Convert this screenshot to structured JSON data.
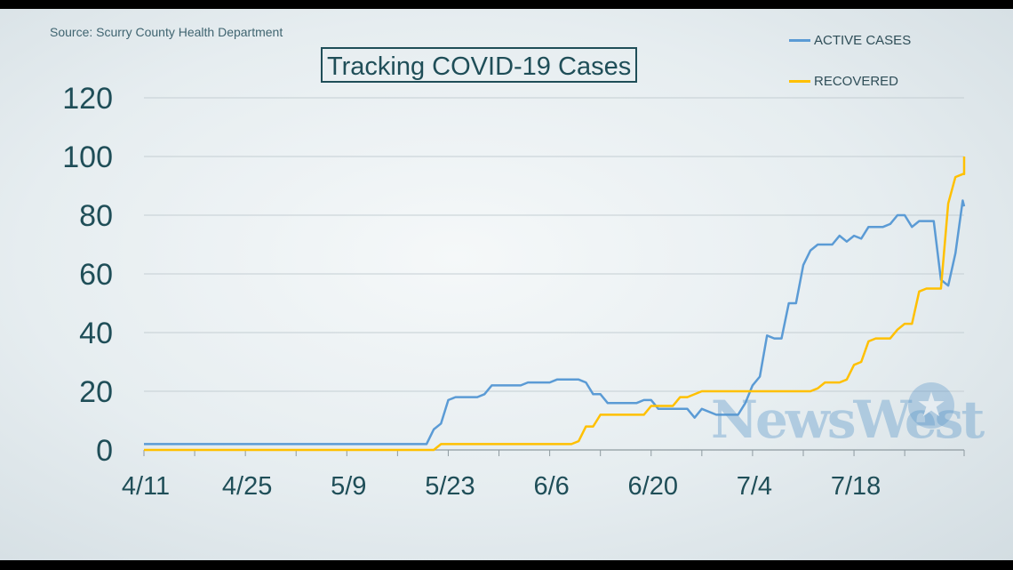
{
  "header": {
    "source": "Source: Scurry County Health Department",
    "title": "Tracking COVID-19 Cases"
  },
  "watermark": {
    "text": "NewsWest",
    "icon": "star-icon"
  },
  "colors": {
    "active": "#5b9bd5",
    "recovered": "#ffc000",
    "text": "#1f4e58",
    "grid": "#c4ced3"
  },
  "chart_data": {
    "type": "line",
    "title": "Tracking COVID-19 Cases",
    "xlabel": "",
    "ylabel": "",
    "ylim": [
      0,
      120
    ],
    "yticks": [
      0,
      20,
      40,
      60,
      80,
      100,
      120
    ],
    "xlim": [
      "2020-04-11",
      "2020-08-01"
    ],
    "xticks": [
      {
        "date": "2020-04-11",
        "label": "4/11"
      },
      {
        "date": "2020-04-25",
        "label": "4/25"
      },
      {
        "date": "2020-05-09",
        "label": "5/9"
      },
      {
        "date": "2020-05-23",
        "label": "5/23"
      },
      {
        "date": "2020-06-06",
        "label": "6/6"
      },
      {
        "date": "2020-06-20",
        "label": "6/20"
      },
      {
        "date": "2020-07-04",
        "label": "7/4"
      },
      {
        "date": "2020-07-18",
        "label": "7/18"
      }
    ],
    "grid": true,
    "legend": "top-right",
    "series": [
      {
        "name": "ACTIVE CASES",
        "color": "#5b9bd5",
        "points": [
          [
            "2020-04-11",
            2
          ],
          [
            "2020-05-20",
            2
          ],
          [
            "2020-05-21",
            7
          ],
          [
            "2020-05-22",
            9
          ],
          [
            "2020-05-23",
            17
          ],
          [
            "2020-05-24",
            18
          ],
          [
            "2020-05-27",
            18
          ],
          [
            "2020-05-28",
            19
          ],
          [
            "2020-05-29",
            22
          ],
          [
            "2020-06-02",
            22
          ],
          [
            "2020-06-03",
            23
          ],
          [
            "2020-06-06",
            23
          ],
          [
            "2020-06-07",
            24
          ],
          [
            "2020-06-10",
            24
          ],
          [
            "2020-06-11",
            23
          ],
          [
            "2020-06-12",
            19
          ],
          [
            "2020-06-13",
            19
          ],
          [
            "2020-06-14",
            16
          ],
          [
            "2020-06-18",
            16
          ],
          [
            "2020-06-19",
            17
          ],
          [
            "2020-06-20",
            17
          ],
          [
            "2020-06-21",
            14
          ],
          [
            "2020-06-25",
            14
          ],
          [
            "2020-06-26",
            11
          ],
          [
            "2020-06-27",
            14
          ],
          [
            "2020-06-29",
            12
          ],
          [
            "2020-07-02",
            12
          ],
          [
            "2020-07-03",
            16
          ],
          [
            "2020-07-04",
            22
          ],
          [
            "2020-07-05",
            25
          ],
          [
            "2020-07-06",
            39
          ],
          [
            "2020-07-07",
            38
          ],
          [
            "2020-07-08",
            38
          ],
          [
            "2020-07-09",
            50
          ],
          [
            "2020-07-10",
            50
          ],
          [
            "2020-07-11",
            63
          ],
          [
            "2020-07-12",
            68
          ],
          [
            "2020-07-13",
            70
          ],
          [
            "2020-07-15",
            70
          ],
          [
            "2020-07-16",
            73
          ],
          [
            "2020-07-17",
            71
          ],
          [
            "2020-07-18",
            73
          ],
          [
            "2020-07-19",
            72
          ],
          [
            "2020-07-20",
            76
          ],
          [
            "2020-07-22",
            76
          ],
          [
            "2020-07-23",
            77
          ],
          [
            "2020-07-24",
            80
          ],
          [
            "2020-07-25",
            80
          ],
          [
            "2020-07-26",
            76
          ],
          [
            "2020-07-27",
            78
          ],
          [
            "2020-07-29",
            78
          ],
          [
            "2020-07-30",
            58
          ],
          [
            "2020-07-31",
            56
          ],
          [
            "2020-08-01",
            67
          ],
          [
            "2020-08-02",
            85
          ],
          [
            "2020-08-03",
            83
          ]
        ]
      },
      {
        "name": "RECOVERED",
        "color": "#ffc000",
        "points": [
          [
            "2020-04-11",
            0
          ],
          [
            "2020-05-21",
            0
          ],
          [
            "2020-05-22",
            2
          ],
          [
            "2020-06-09",
            2
          ],
          [
            "2020-06-10",
            3
          ],
          [
            "2020-06-11",
            8
          ],
          [
            "2020-06-12",
            8
          ],
          [
            "2020-06-13",
            12
          ],
          [
            "2020-06-19",
            12
          ],
          [
            "2020-06-20",
            15
          ],
          [
            "2020-06-23",
            15
          ],
          [
            "2020-06-24",
            18
          ],
          [
            "2020-06-25",
            18
          ],
          [
            "2020-06-27",
            20
          ],
          [
            "2020-07-12",
            20
          ],
          [
            "2020-07-13",
            21
          ],
          [
            "2020-07-14",
            23
          ],
          [
            "2020-07-16",
            23
          ],
          [
            "2020-07-17",
            24
          ],
          [
            "2020-07-18",
            29
          ],
          [
            "2020-07-19",
            30
          ],
          [
            "2020-07-20",
            37
          ],
          [
            "2020-07-21",
            38
          ],
          [
            "2020-07-23",
            38
          ],
          [
            "2020-07-24",
            41
          ],
          [
            "2020-07-25",
            43
          ],
          [
            "2020-07-26",
            43
          ],
          [
            "2020-07-27",
            54
          ],
          [
            "2020-07-28",
            55
          ],
          [
            "2020-07-30",
            55
          ],
          [
            "2020-07-31",
            84
          ],
          [
            "2020-08-01",
            93
          ],
          [
            "2020-08-02",
            94
          ],
          [
            "2020-08-03",
            94
          ],
          [
            "2020-08-04",
            100
          ]
        ]
      }
    ]
  }
}
